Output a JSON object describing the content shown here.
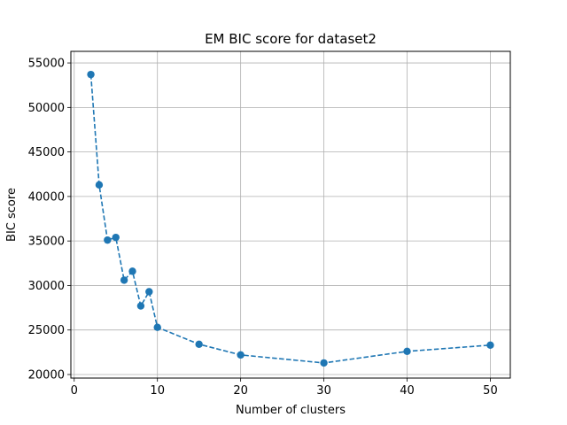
{
  "chart_data": {
    "type": "line",
    "title": "EM BIC score for dataset2",
    "xlabel": "Number of clusters",
    "ylabel": "BIC score",
    "xlim": [
      -0.4,
      52.4
    ],
    "ylim": [
      19600,
      56300
    ],
    "xticks": [
      0,
      10,
      20,
      30,
      40,
      50
    ],
    "yticks": [
      20000,
      25000,
      30000,
      35000,
      40000,
      45000,
      50000,
      55000
    ],
    "grid": true,
    "series": [
      {
        "color": "#1f77b4",
        "line_style": "dashed",
        "marker": "circle",
        "x": [
          2,
          3,
          4,
          5,
          6,
          7,
          8,
          9,
          10,
          15,
          20,
          30,
          40,
          50
        ],
        "y": [
          53700,
          41300,
          35100,
          35400,
          30600,
          31600,
          27700,
          29300,
          25300,
          23400,
          22200,
          21300,
          22600,
          23300
        ]
      }
    ]
  }
}
